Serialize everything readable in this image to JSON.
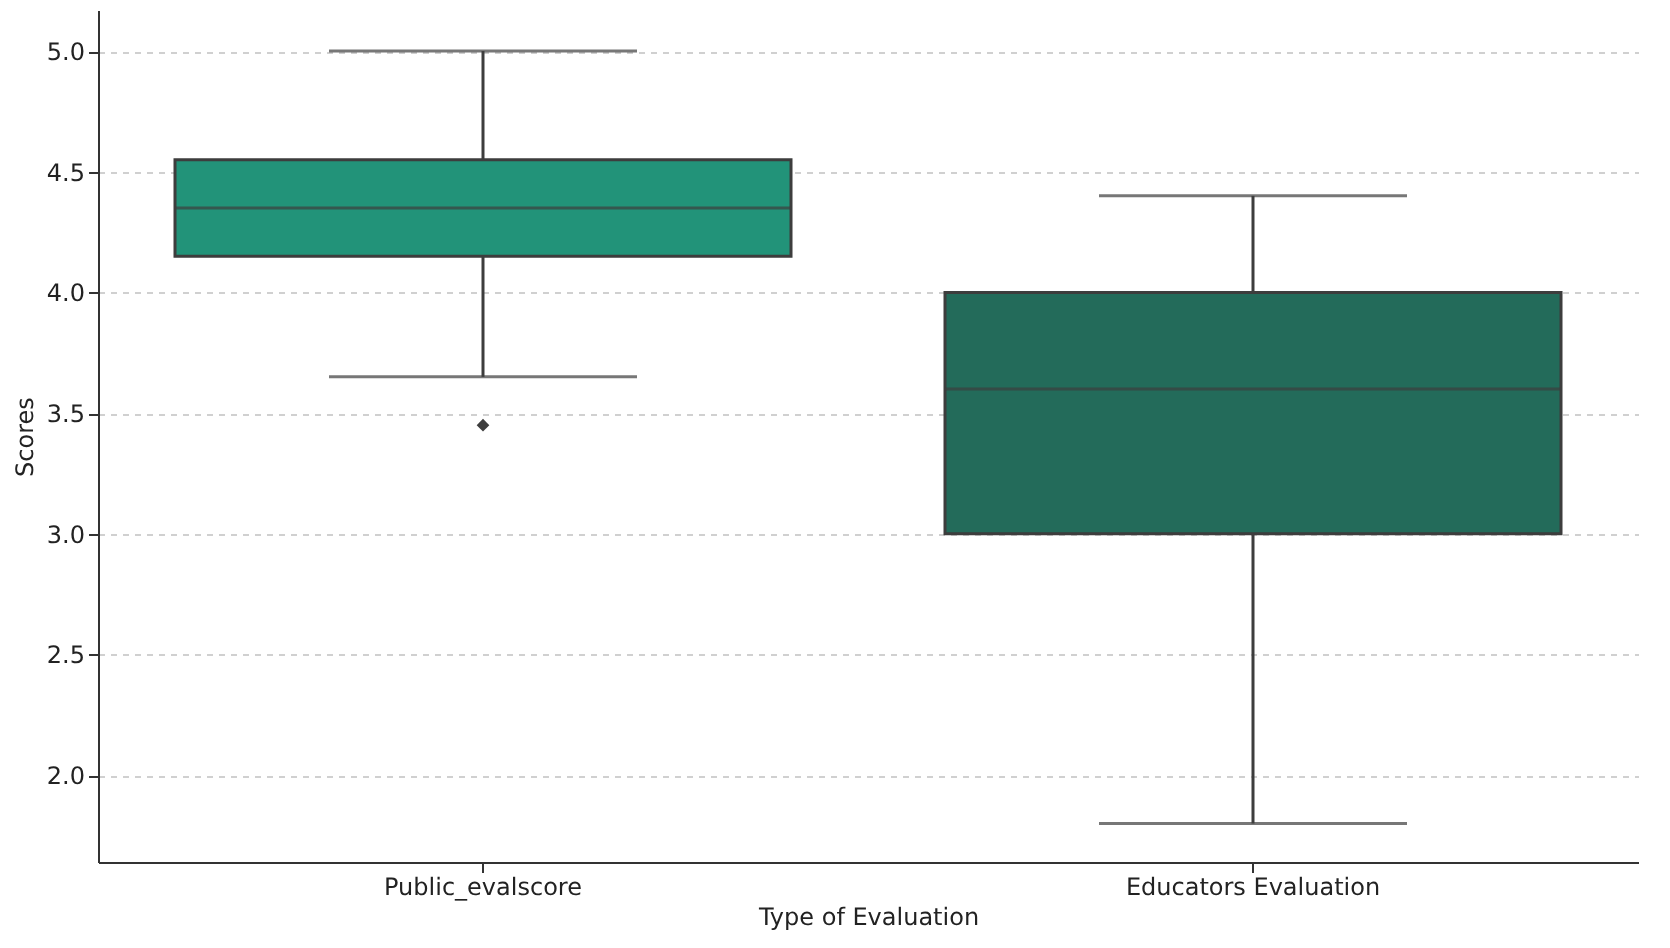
{
  "chart_data": {
    "type": "box",
    "xlabel": "Type of Evaluation",
    "ylabel": "Scores",
    "categories": [
      "Public_evalscore",
      "Educators Evaluation"
    ],
    "colors": [
      "#229379",
      "#236b5a"
    ],
    "boxes": [
      {
        "low": 3.65,
        "q1": 4.15,
        "median": 4.35,
        "q3": 4.55,
        "high": 5.0,
        "outliers": [
          3.45
        ]
      },
      {
        "low": 1.8,
        "q1": 3.0,
        "median": 3.6,
        "q3": 4.0,
        "high": 4.4
      }
    ],
    "ylim": [
      1.64,
      5.17
    ],
    "yticks": [
      {
        "value": 2,
        "label": "2.0"
      },
      2.5,
      {
        "value": 3,
        "label": "3.0"
      },
      3.5,
      {
        "value": 4,
        "label": "4.0"
      },
      4.5,
      {
        "value": 5,
        "label": "5.0"
      }
    ],
    "grid": "y",
    "marker": "diamond"
  }
}
